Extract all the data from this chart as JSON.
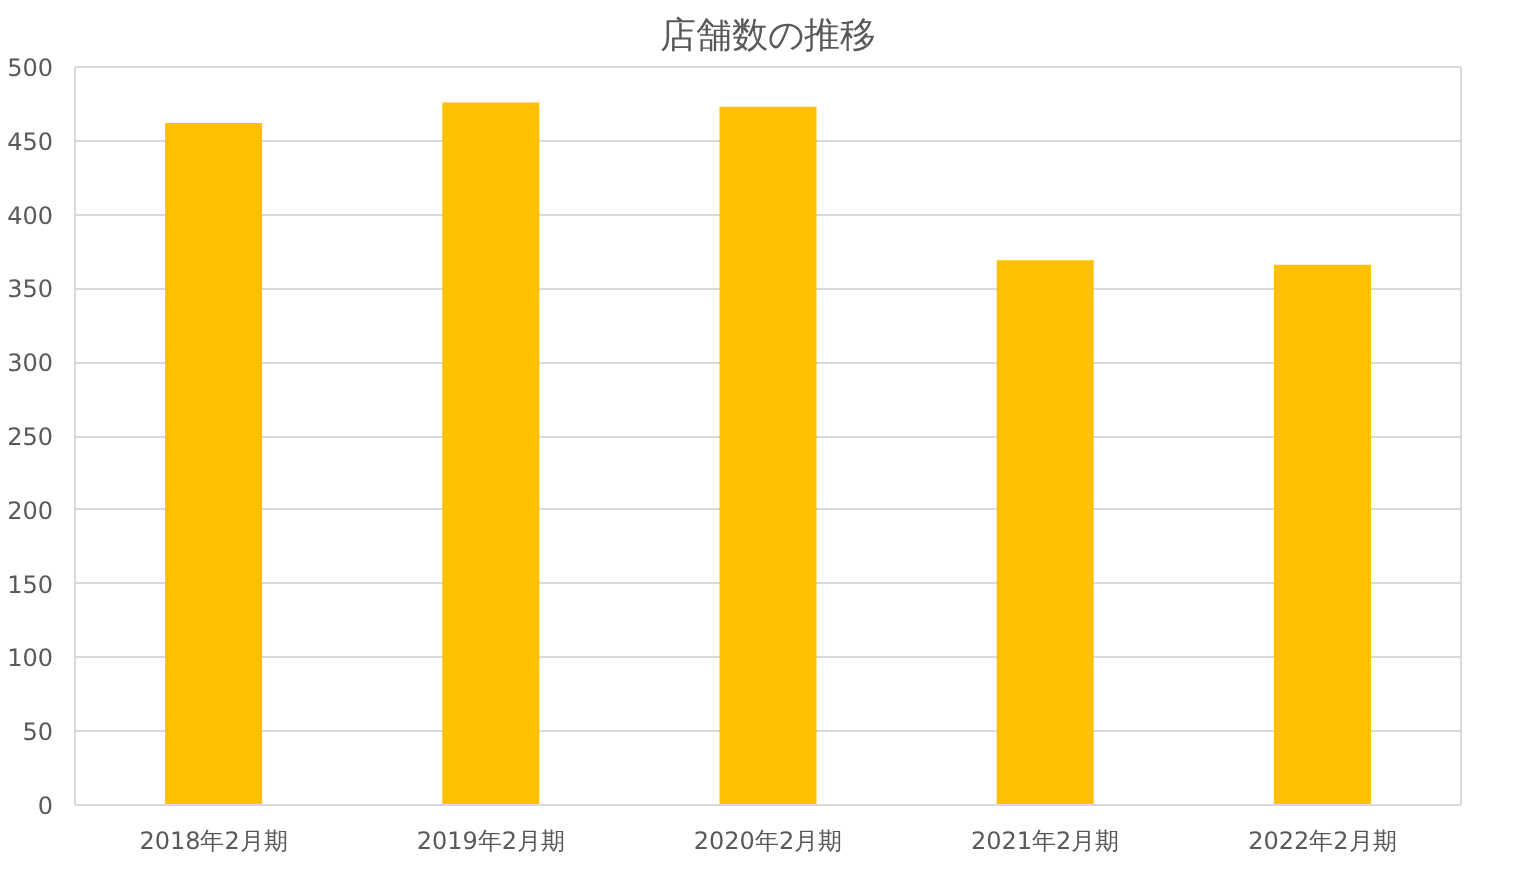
{
  "chart_data": {
    "type": "bar",
    "title": "店舗数の推移",
    "categories": [
      "2018年2月期",
      "2019年2月期",
      "2020年2月期",
      "2021年2月期",
      "2022年2月期"
    ],
    "values": [
      462,
      476,
      473,
      369,
      366
    ],
    "color": "#ffc000",
    "ylim": [
      0,
      500
    ],
    "yticks": [
      0,
      50,
      100,
      150,
      200,
      250,
      300,
      350,
      400,
      450,
      500
    ],
    "grid": "y"
  }
}
